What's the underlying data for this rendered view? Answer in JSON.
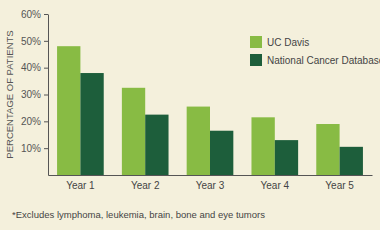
{
  "chart_data": {
    "type": "bar",
    "y_label": "PERCENTAGE OF PATIENTS",
    "categories": [
      "Year 1",
      "Year 2",
      "Year 3",
      "Year 4",
      "Year 5"
    ],
    "series": [
      {
        "name": "UC Davis",
        "color": "#88bb44",
        "values": [
          48,
          32.5,
          25.5,
          21.5,
          19
        ]
      },
      {
        "name": "National Cancer Database",
        "color": "#1d5e3b",
        "values": [
          38,
          22.5,
          16.5,
          13,
          10.5
        ]
      }
    ],
    "ylim": [
      0,
      60
    ],
    "yticks": [
      {
        "value": 10,
        "label": "10%"
      },
      {
        "value": 20,
        "label": "20%"
      },
      {
        "value": 30,
        "label": "30%"
      },
      {
        "value": 40,
        "label": "40%"
      },
      {
        "value": 50,
        "label": "50%"
      },
      {
        "value": 60,
        "label": "60%"
      }
    ],
    "grid": false,
    "legend": "top-right",
    "annotations": [
      "*Excludes lymphoma, leukemia, brain, bone and eye tumors"
    ]
  }
}
